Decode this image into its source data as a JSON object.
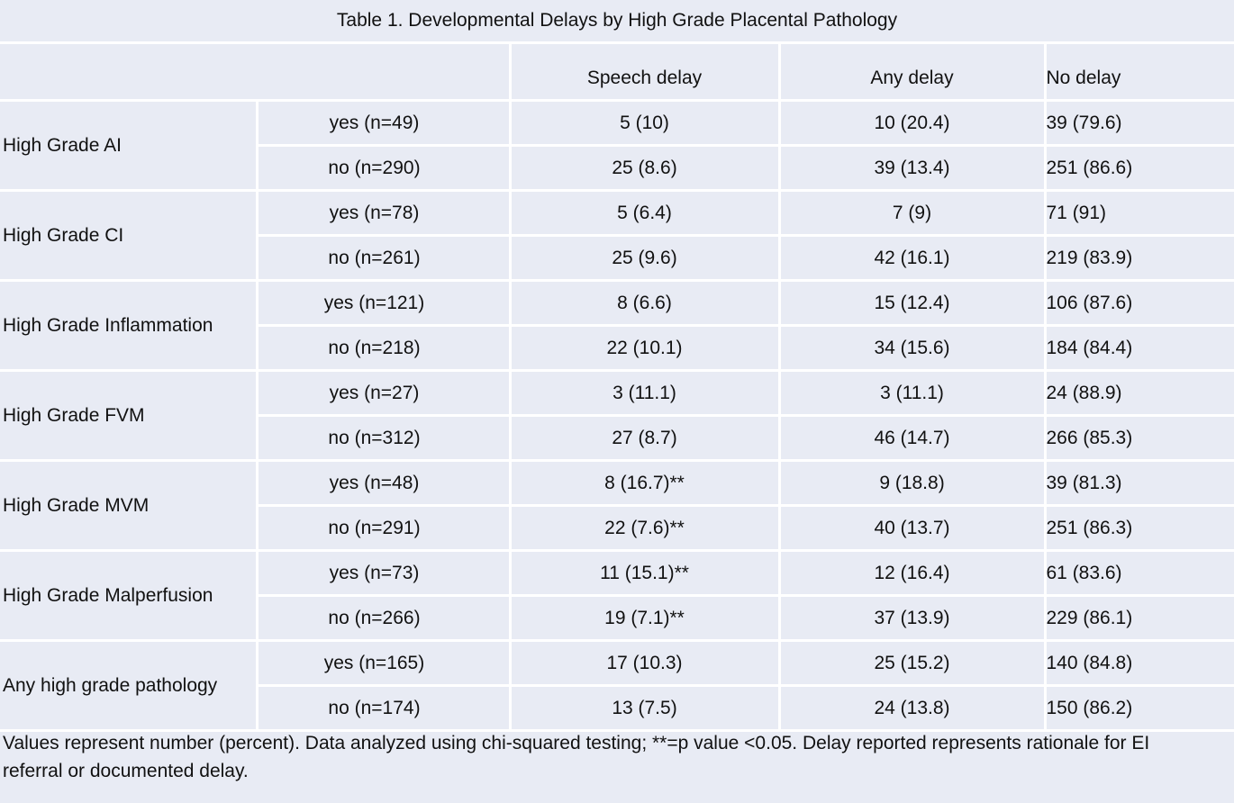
{
  "table": {
    "title": "Table 1. Developmental Delays by High Grade Placental Pathology",
    "columns": [
      "Speech delay",
      "Any delay",
      "No delay"
    ],
    "groups": [
      {
        "name": "High Grade AI",
        "rows": [
          {
            "label": "yes (n=49)",
            "speech": "5 (10)",
            "any": "10 (20.4)",
            "none": "39 (79.6)"
          },
          {
            "label": "no (n=290)",
            "speech": "25 (8.6)",
            "any": "39 (13.4)",
            "none": "251 (86.6)"
          }
        ]
      },
      {
        "name": "High Grade CI",
        "rows": [
          {
            "label": "yes (n=78)",
            "speech": "5 (6.4)",
            "any": "7 (9)",
            "none": "71 (91)"
          },
          {
            "label": "no (n=261)",
            "speech": "25 (9.6)",
            "any": "42 (16.1)",
            "none": "219 (83.9)"
          }
        ]
      },
      {
        "name": "High Grade Inflammation",
        "rows": [
          {
            "label": "yes (n=121)",
            "speech": "8 (6.6)",
            "any": "15 (12.4)",
            "none": "106 (87.6)"
          },
          {
            "label": "no (n=218)",
            "speech": "22 (10.1)",
            "any": "34 (15.6)",
            "none": "184 (84.4)"
          }
        ]
      },
      {
        "name": "High Grade FVM",
        "rows": [
          {
            "label": "yes (n=27)",
            "speech": "3 (11.1)",
            "any": "3 (11.1)",
            "none": "24 (88.9)"
          },
          {
            "label": "no (n=312)",
            "speech": "27 (8.7)",
            "any": "46 (14.7)",
            "none": "266 (85.3)"
          }
        ]
      },
      {
        "name": "High Grade MVM",
        "rows": [
          {
            "label": "yes (n=48)",
            "speech": "8 (16.7)**",
            "any": "9 (18.8)",
            "none": "39 (81.3)"
          },
          {
            "label": "no (n=291)",
            "speech": "22 (7.6)**",
            "any": "40 (13.7)",
            "none": "251 (86.3)"
          }
        ]
      },
      {
        "name": "High Grade Malperfusion",
        "rows": [
          {
            "label": "yes (n=73)",
            "speech": "11 (15.1)**",
            "any": "12 (16.4)",
            "none": "61 (83.6)"
          },
          {
            "label": "no (n=266)",
            "speech": "19 (7.1)**",
            "any": "37 (13.9)",
            "none": "229 (86.1)"
          }
        ]
      },
      {
        "name": "Any high grade pathology",
        "rows": [
          {
            "label": "yes (n=165)",
            "speech": "17 (10.3)",
            "any": "25 (15.2)",
            "none": "140 (84.8)"
          },
          {
            "label": "no (n=174)",
            "speech": "13 (7.5)",
            "any": "24 (13.8)",
            "none": "150 (86.2)"
          }
        ]
      }
    ]
  },
  "footnote": "Values represent number (percent). Data analyzed using chi-squared testing; **=p value <0.05. Delay reported represents rationale for EI referral or documented delay.",
  "colors": {
    "background": "#e8ebf4",
    "grid": "#ffffff",
    "text": "#111111"
  }
}
